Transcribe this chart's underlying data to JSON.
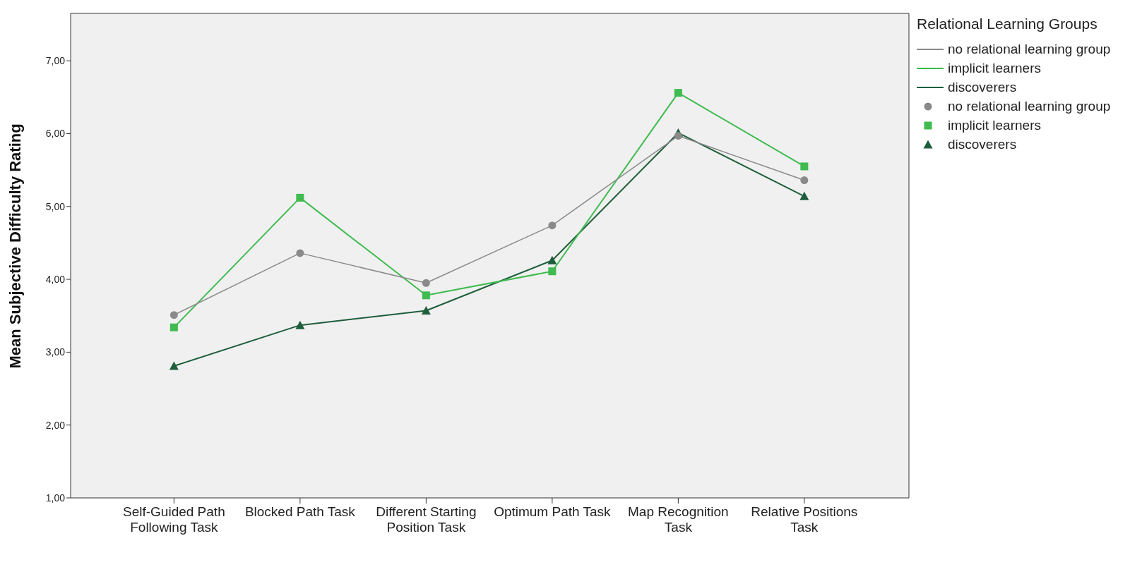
{
  "chart_data": {
    "type": "line",
    "ylabel": "Mean Subjective Difficulty Rating",
    "legend_title": "Relational Learning Groups",
    "legend": "top right",
    "grid": false,
    "categories": [
      "Self-Guided Path Following Task",
      "Blocked Path Task",
      "Different Starting Position Task",
      "Optimum Path Task",
      "Map Recognition Task",
      "Relative Positions Task"
    ],
    "ylim": [
      1,
      7.65
    ],
    "yticks": [
      {
        "value": 1,
        "label": "1,00"
      },
      {
        "value": 2,
        "label": "2,00"
      },
      {
        "value": 3,
        "label": "3,00"
      },
      {
        "value": 4,
        "label": "4,00"
      },
      {
        "value": 5,
        "label": "5,00"
      },
      {
        "value": 6,
        "label": "6,00"
      },
      {
        "value": 7,
        "label": "7,00"
      }
    ],
    "series": [
      {
        "name": "no relational learning group",
        "color": "#8a8a8a",
        "marker": "circle",
        "values": [
          3.51,
          4.36,
          3.95,
          4.74,
          5.97,
          5.36
        ]
      },
      {
        "name": "implicit learners",
        "color": "#3fbb4f",
        "marker": "square",
        "values": [
          3.34,
          5.12,
          3.78,
          4.11,
          6.56,
          5.55
        ]
      },
      {
        "name": "discoverers",
        "color": "#1e5e3c",
        "marker": "triangle",
        "values": [
          2.81,
          3.37,
          3.57,
          4.26,
          6.01,
          5.14
        ]
      }
    ]
  }
}
